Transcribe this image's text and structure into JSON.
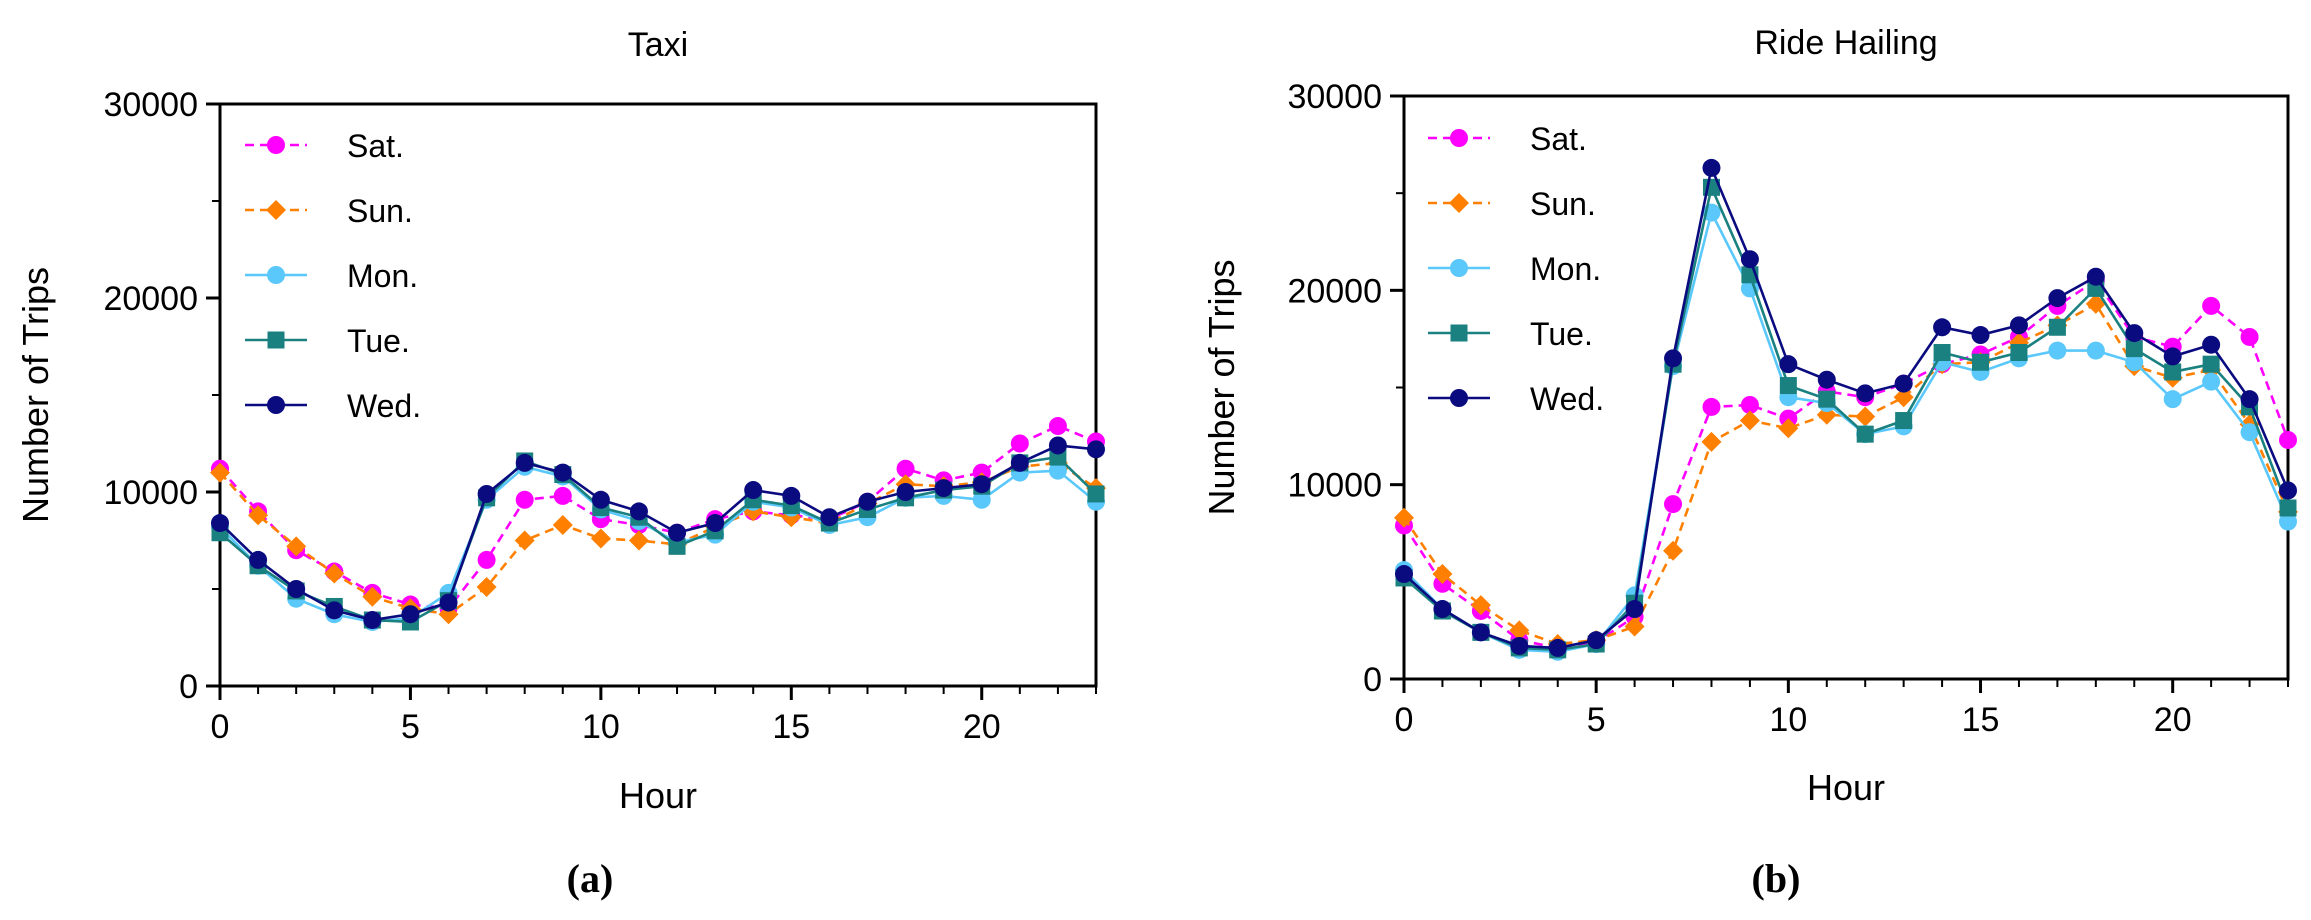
{
  "chart_data": [
    {
      "type": "line",
      "title": "Taxi",
      "xlabel": "Hour",
      "ylabel": "Number of Trips",
      "caption": "(a)",
      "xlim": [
        0,
        23
      ],
      "ylim": [
        0,
        30000
      ],
      "xticks": [
        "0",
        "5",
        "10",
        "15",
        "20"
      ],
      "yticks": [
        "0",
        "10000",
        "20000",
        "30000"
      ],
      "legend_position": "top-left",
      "x": [
        0,
        1,
        2,
        3,
        4,
        5,
        6,
        7,
        8,
        9,
        10,
        11,
        12,
        13,
        14,
        15,
        16,
        17,
        18,
        19,
        20,
        21,
        22,
        23
      ],
      "series": [
        {
          "name": "Sat.",
          "color": "#ff00ff",
          "dashed": true,
          "marker": "circle",
          "values": [
            11200,
            9000,
            7000,
            5900,
            4800,
            4200,
            4000,
            6500,
            9600,
            9800,
            8600,
            8300,
            7900,
            8600,
            9000,
            8800,
            8600,
            9500,
            11200,
            10600,
            11000,
            12500,
            13400,
            12600
          ]
        },
        {
          "name": "Sun.",
          "color": "#ff8000",
          "dashed": true,
          "marker": "diamond",
          "values": [
            11000,
            8800,
            7200,
            5800,
            4600,
            4000,
            3700,
            5100,
            7500,
            8300,
            7600,
            7500,
            7300,
            8200,
            9000,
            8700,
            8400,
            9400,
            10400,
            10300,
            10500,
            11300,
            11500,
            10200
          ]
        },
        {
          "name": "Mon.",
          "color": "#5ac8fa",
          "dashed": false,
          "marker": "circle",
          "values": [
            8200,
            6200,
            4500,
            3700,
            3300,
            3500,
            4800,
            9600,
            11300,
            10800,
            9100,
            8500,
            7400,
            7800,
            9500,
            9200,
            8300,
            8700,
            9700,
            9800,
            9600,
            11000,
            11100,
            9500
          ]
        },
        {
          "name": "Tue.",
          "color": "#1a8080",
          "dashed": false,
          "marker": "square",
          "values": [
            7900,
            6200,
            4900,
            4100,
            3400,
            3300,
            4400,
            9700,
            11600,
            10900,
            9200,
            8700,
            7200,
            8000,
            9600,
            9300,
            8400,
            9100,
            9700,
            10100,
            10300,
            11500,
            11800,
            9900
          ]
        },
        {
          "name": "Wed.",
          "color": "#0b0b80",
          "dashed": false,
          "marker": "circle",
          "values": [
            8400,
            6500,
            5000,
            3900,
            3400,
            3700,
            4300,
            9900,
            11500,
            11000,
            9600,
            9000,
            7900,
            8400,
            10100,
            9800,
            8700,
            9500,
            10000,
            10200,
            10400,
            11500,
            12400,
            12200
          ]
        }
      ]
    },
    {
      "type": "line",
      "title": "Ride Hailing",
      "xlabel": "Hour",
      "ylabel": "Number of Trips",
      "caption": "(b)",
      "xlim": [
        0,
        23
      ],
      "ylim": [
        0,
        30000
      ],
      "xticks": [
        "0",
        "5",
        "10",
        "15",
        "20"
      ],
      "yticks": [
        "0",
        "10000",
        "20000",
        "30000"
      ],
      "legend_position": "top-left",
      "x": [
        0,
        1,
        2,
        3,
        4,
        5,
        6,
        7,
        8,
        9,
        10,
        11,
        12,
        13,
        14,
        15,
        16,
        17,
        18,
        19,
        20,
        21,
        22,
        23
      ],
      "series": [
        {
          "name": "Sat.",
          "color": "#ff00ff",
          "dashed": true,
          "marker": "circle",
          "values": [
            7900,
            4900,
            3500,
            2000,
            1600,
            1900,
            3200,
            9000,
            14000,
            14100,
            13400,
            14800,
            14500,
            15200,
            16200,
            16700,
            17600,
            19200,
            20500,
            17600,
            17100,
            19200,
            17600,
            12300
          ]
        },
        {
          "name": "Sun.",
          "color": "#ff8000",
          "dashed": true,
          "marker": "diamond",
          "values": [
            8300,
            5400,
            3800,
            2500,
            1800,
            2000,
            2700,
            6600,
            12200,
            13300,
            12900,
            13600,
            13500,
            14500,
            16200,
            16300,
            17300,
            18200,
            19300,
            16100,
            15500,
            15900,
            13100,
            8600
          ]
        },
        {
          "name": "Mon.",
          "color": "#5ac8fa",
          "dashed": false,
          "marker": "circle",
          "values": [
            5600,
            3600,
            2400,
            1500,
            1400,
            1800,
            4300,
            16100,
            24000,
            20100,
            14500,
            14200,
            12600,
            13000,
            16300,
            15800,
            16500,
            16900,
            16900,
            16300,
            14400,
            15300,
            12700,
            8100
          ]
        },
        {
          "name": "Tue.",
          "color": "#1a8080",
          "dashed": false,
          "marker": "square",
          "values": [
            5200,
            3500,
            2400,
            1600,
            1500,
            1800,
            3900,
            16200,
            25300,
            20800,
            15100,
            14400,
            12600,
            13300,
            16800,
            16300,
            16800,
            18100,
            20100,
            17000,
            15800,
            16200,
            14000,
            8800
          ]
        },
        {
          "name": "Wed.",
          "color": "#0b0b80",
          "dashed": false,
          "marker": "circle",
          "values": [
            5400,
            3600,
            2400,
            1700,
            1600,
            2000,
            3600,
            16500,
            26300,
            21600,
            16200,
            15400,
            14700,
            15200,
            18100,
            17700,
            18200,
            19600,
            20700,
            17800,
            16600,
            17200,
            14400,
            9700
          ]
        }
      ]
    }
  ]
}
